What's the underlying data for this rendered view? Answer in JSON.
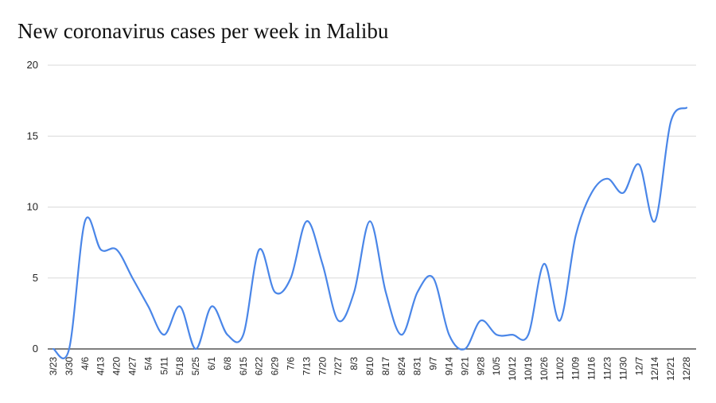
{
  "chart_data": {
    "type": "line",
    "title": "New coronavirus cases per week in Malibu",
    "xlabel": "",
    "ylabel": "",
    "ylim": [
      0,
      20
    ],
    "yticks": [
      "0",
      "5",
      "10",
      "15",
      "20"
    ],
    "grid": true,
    "legend": "none",
    "line_color": "#4a86e8",
    "categories": [
      "3/23",
      "3/30",
      "4/6",
      "4/13",
      "4/20",
      "4/27",
      "5/4",
      "5/11",
      "5/18",
      "5/25",
      "6/1",
      "6/8",
      "6/15",
      "6/22",
      "6/29",
      "7/6",
      "7/13",
      "7/20",
      "7/27",
      "8/3",
      "8/10",
      "8/17",
      "8/24",
      "8/31",
      "9/7",
      "9/14",
      "9/21",
      "9/28",
      "10/5",
      "10/12",
      "10/19",
      "10/26",
      "11/02",
      "11/09",
      "11/16",
      "11/23",
      "11/30",
      "12/7",
      "12/14",
      "12/21",
      "12/28"
    ],
    "values": [
      0,
      0,
      9,
      7,
      7,
      5,
      3,
      1,
      3,
      0,
      3,
      1,
      1,
      7,
      4,
      5,
      9,
      6,
      2,
      4,
      9,
      4,
      1,
      4,
      5,
      1,
      0,
      2,
      1,
      1,
      1,
      6,
      2,
      8,
      11,
      12,
      11,
      13,
      9,
      16,
      17
    ]
  }
}
